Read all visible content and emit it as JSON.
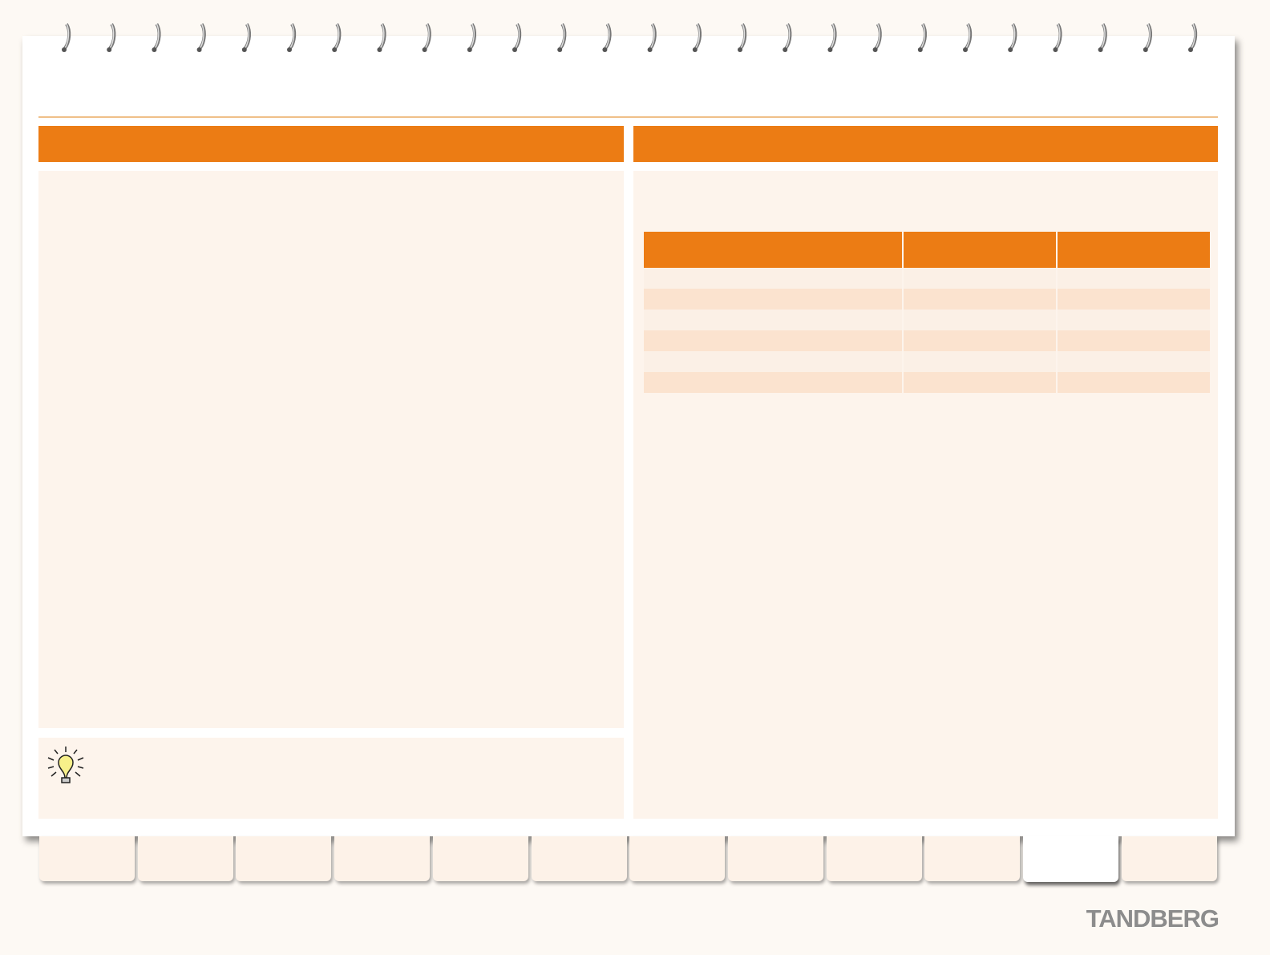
{
  "footer": {
    "logo": "TANDBERG"
  }
}
